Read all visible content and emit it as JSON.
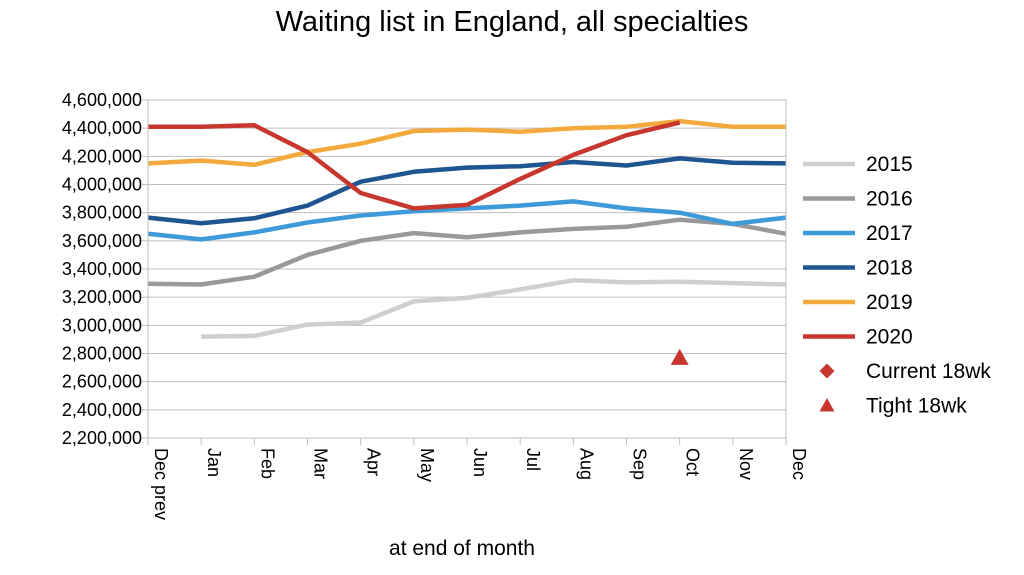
{
  "chart_data": {
    "type": "line",
    "title": "Waiting list in England, all specialties",
    "xlabel": "at end of month",
    "ylabel": "",
    "categories": [
      "Dec prev",
      "Jan",
      "Feb",
      "Mar",
      "Apr",
      "May",
      "Jun",
      "Jul",
      "Aug",
      "Sep",
      "Oct",
      "Nov",
      "Dec"
    ],
    "ylim": [
      2200000,
      4600000
    ],
    "y_ticks": [
      "2,200,000",
      "2,400,000",
      "2,600,000",
      "2,800,000",
      "3,000,000",
      "3,200,000",
      "3,400,000",
      "3,600,000",
      "3,800,000",
      "4,000,000",
      "4,200,000",
      "4,400,000",
      "4,600,000"
    ],
    "grid": "horizontal",
    "legend_position": "right",
    "series": [
      {
        "name": "2015",
        "color": "#cfcfcf",
        "values": [
          null,
          2920000,
          2925000,
          3005000,
          3020000,
          3170000,
          3195000,
          3255000,
          3320000,
          3305000,
          3310000,
          3300000,
          3290000
        ]
      },
      {
        "name": "2016",
        "color": "#999999",
        "values": [
          3295000,
          3290000,
          3345000,
          3500000,
          3600000,
          3655000,
          3625000,
          3660000,
          3685000,
          3700000,
          3750000,
          3720000,
          3650000
        ]
      },
      {
        "name": "2017",
        "color": "#3f9ad9",
        "values": [
          3650000,
          3610000,
          3660000,
          3730000,
          3780000,
          3810000,
          3830000,
          3850000,
          3880000,
          3830000,
          3800000,
          3720000,
          3765000
        ]
      },
      {
        "name": "2018",
        "color": "#1f5590",
        "values": [
          3765000,
          3725000,
          3760000,
          3850000,
          4020000,
          4090000,
          4120000,
          4130000,
          4160000,
          4135000,
          4185000,
          4155000,
          4150000
        ]
      },
      {
        "name": "2019",
        "color": "#f2aa3c",
        "values": [
          4150000,
          4170000,
          4140000,
          4230000,
          4290000,
          4380000,
          4390000,
          4375000,
          4400000,
          4410000,
          4450000,
          4410000,
          4410000
        ]
      },
      {
        "name": "2020",
        "color": "#c8372d",
        "values": [
          4410000,
          4410000,
          4420000,
          4230000,
          3940000,
          3830000,
          3855000,
          4040000,
          4210000,
          4350000,
          4440000,
          null,
          null
        ]
      }
    ],
    "markers": [
      {
        "name": "Current 18wk",
        "shape": "diamond",
        "color": "#c8372d",
        "points": []
      },
      {
        "name": "Tight 18wk",
        "shape": "triangle",
        "color": "#c8372d",
        "points": [
          {
            "x": "Oct",
            "y": 2770000
          }
        ]
      }
    ]
  }
}
